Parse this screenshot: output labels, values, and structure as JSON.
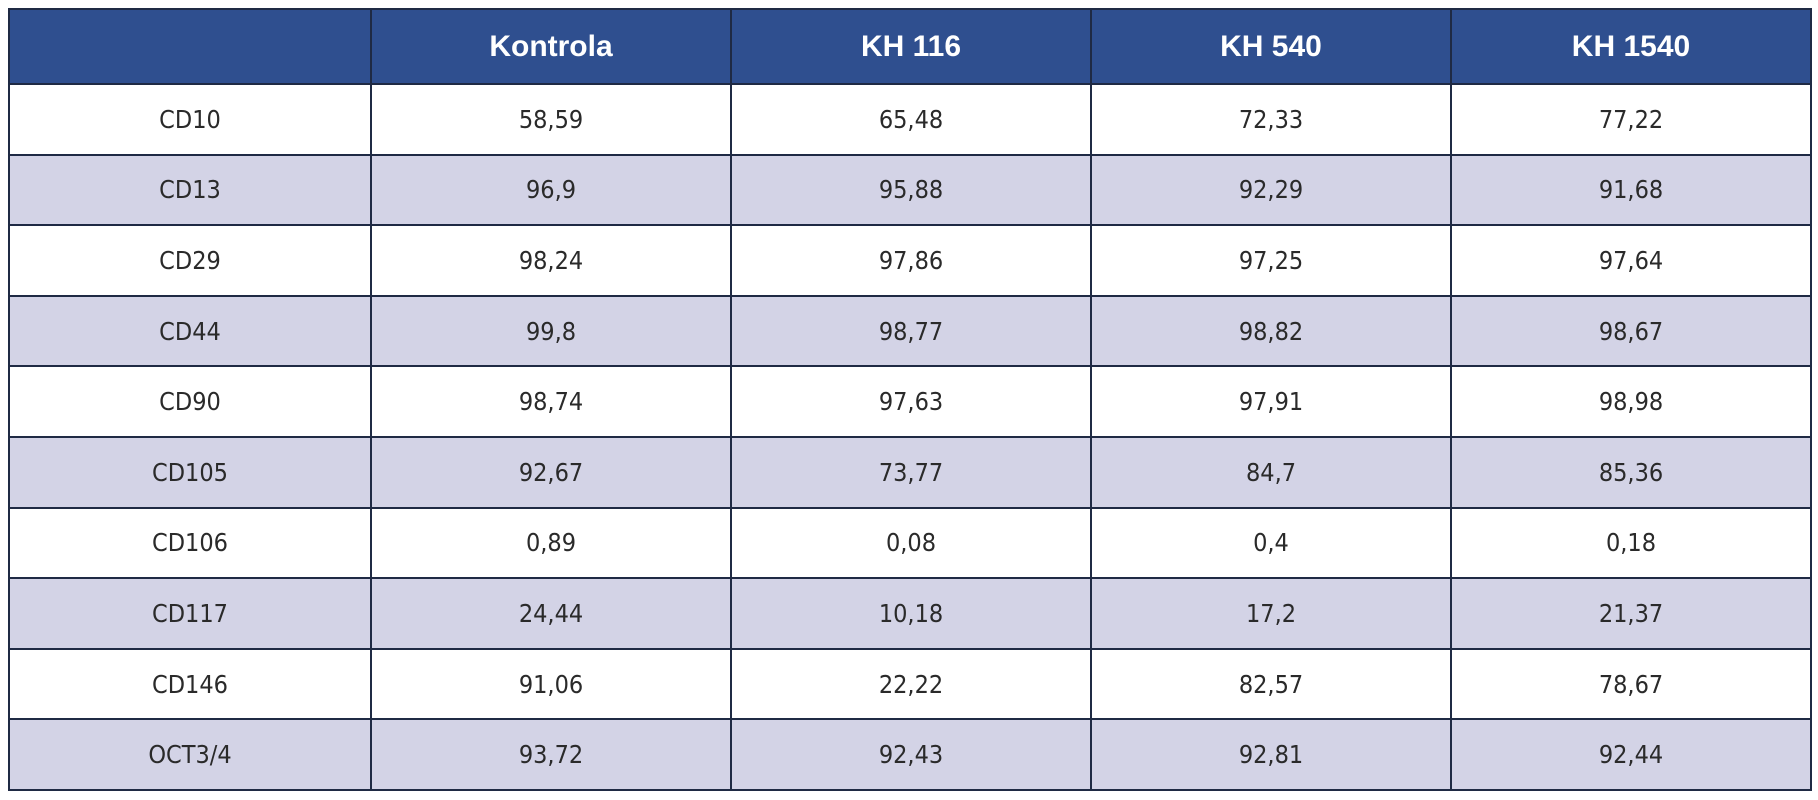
{
  "table": {
    "headers": [
      "",
      "Kontrola",
      "KH 116",
      "KH 540",
      "KH 1540"
    ],
    "rows": [
      [
        "CD10",
        "58,59",
        "65,48",
        "72,33",
        "77,22"
      ],
      [
        "CD13",
        "96,9",
        "95,88",
        "92,29",
        "91,68"
      ],
      [
        "CD29",
        "98,24",
        "97,86",
        "97,25",
        "97,64"
      ],
      [
        "CD44",
        "99,8",
        "98,77",
        "98,82",
        "98,67"
      ],
      [
        "CD90",
        "98,74",
        "97,63",
        "97,91",
        "98,98"
      ],
      [
        "CD105",
        "92,67",
        "73,77",
        "84,7",
        "85,36"
      ],
      [
        "CD106",
        "0,89",
        "0,08",
        "0,4",
        "0,18"
      ],
      [
        "CD117",
        "24,44",
        "10,18",
        "17,2",
        "21,37"
      ],
      [
        "CD146",
        "91,06",
        "22,22",
        "82,57",
        "78,67"
      ],
      [
        "OCT3/4",
        "93,72",
        "92,43",
        "92,81",
        "92,44"
      ]
    ]
  },
  "colors": {
    "header_bg": "#2f4f8f",
    "header_text": "#ffffff",
    "row_alt_bg": "#d3d3e6",
    "border": "#1f2a44"
  }
}
